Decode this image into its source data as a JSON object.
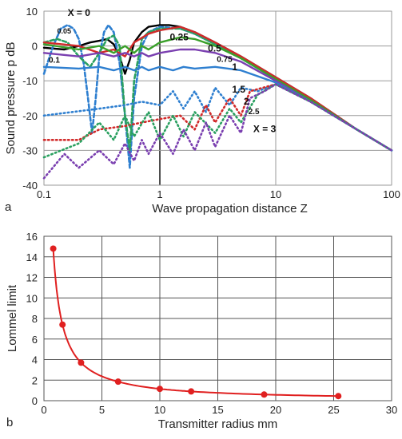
{
  "panels": {
    "a_label": "a",
    "b_label": "b"
  },
  "chart_data": [
    {
      "type": "line",
      "xlabel": "Wave propagation distance  Z",
      "ylabel": "Sound pressure  p  dB",
      "xscale": "log",
      "xlim": [
        0.1,
        100
      ],
      "ylim": [
        -40,
        10
      ],
      "x_ticks": [
        "0.1",
        "1",
        "10",
        "100"
      ],
      "y_ticks": [
        "10",
        "0",
        "-10",
        "-20",
        "-30",
        "-40"
      ],
      "grid": true,
      "series": [
        {
          "name": "X = 0",
          "color": "#000000",
          "style": "solid",
          "points": [
            [
              0.1,
              -0.5
            ],
            [
              0.15,
              -1
            ],
            [
              0.2,
              0
            ],
            [
              0.25,
              1
            ],
            [
              0.3,
              1.5
            ],
            [
              0.35,
              2
            ],
            [
              0.4,
              0.5
            ],
            [
              0.45,
              -3
            ],
            [
              0.5,
              -8
            ],
            [
              0.55,
              -4
            ],
            [
              0.6,
              1
            ],
            [
              0.7,
              4
            ],
            [
              0.8,
              5.5
            ],
            [
              1,
              6
            ],
            [
              1.2,
              6
            ],
            [
              1.5,
              5.5
            ],
            [
              2,
              4
            ],
            [
              3,
              1
            ],
            [
              5,
              -3
            ],
            [
              10,
              -9
            ],
            [
              20,
              -15
            ],
            [
              50,
              -24
            ],
            [
              100,
              -30
            ]
          ]
        },
        {
          "name": "0.05",
          "color": "#2e7fd0",
          "style": "dashed",
          "points": [
            [
              0.1,
              -8
            ],
            [
              0.12,
              0
            ],
            [
              0.14,
              5
            ],
            [
              0.16,
              6
            ],
            [
              0.18,
              5
            ],
            [
              0.2,
              2
            ],
            [
              0.22,
              -5
            ],
            [
              0.24,
              -15
            ],
            [
              0.26,
              -25
            ],
            [
              0.28,
              -15
            ],
            [
              0.3,
              -3
            ],
            [
              0.33,
              4
            ],
            [
              0.36,
              6
            ],
            [
              0.4,
              4
            ],
            [
              0.45,
              -5
            ],
            [
              0.5,
              -20
            ],
            [
              0.55,
              -35
            ],
            [
              0.6,
              -15
            ],
            [
              0.7,
              0
            ],
            [
              0.8,
              4
            ],
            [
              1,
              5.5
            ],
            [
              1.5,
              5
            ],
            [
              2,
              3.5
            ],
            [
              3,
              0.5
            ],
            [
              5,
              -3.5
            ],
            [
              10,
              -9.5
            ],
            [
              20,
              -15.5
            ],
            [
              50,
              -24
            ],
            [
              100,
              -30
            ]
          ]
        },
        {
          "name": "0.1",
          "color": "#2aa060",
          "style": "dashed",
          "points": [
            [
              0.1,
              1
            ],
            [
              0.13,
              2
            ],
            [
              0.16,
              1
            ],
            [
              0.2,
              -3
            ],
            [
              0.25,
              -6
            ],
            [
              0.3,
              -2
            ],
            [
              0.35,
              2
            ],
            [
              0.4,
              3
            ],
            [
              0.45,
              0
            ],
            [
              0.5,
              -20
            ],
            [
              0.55,
              -30
            ],
            [
              0.6,
              -10
            ],
            [
              0.7,
              2
            ],
            [
              0.8,
              4
            ],
            [
              1,
              5
            ],
            [
              1.5,
              5
            ],
            [
              2,
              3.5
            ],
            [
              3,
              0.5
            ],
            [
              5,
              -3.5
            ],
            [
              10,
              -9.5
            ],
            [
              20,
              -15.5
            ],
            [
              50,
              -24
            ],
            [
              100,
              -30
            ]
          ]
        },
        {
          "name": "0.25",
          "color": "#d12a2a",
          "style": "solid",
          "points": [
            [
              0.1,
              1
            ],
            [
              0.2,
              0
            ],
            [
              0.3,
              -2
            ],
            [
              0.4,
              -1
            ],
            [
              0.5,
              -3
            ],
            [
              0.6,
              1
            ],
            [
              0.8,
              3.5
            ],
            [
              1,
              4.5
            ],
            [
              1.5,
              5.5
            ],
            [
              2,
              4
            ],
            [
              3,
              1
            ],
            [
              5,
              -3
            ],
            [
              10,
              -9
            ],
            [
              20,
              -15
            ],
            [
              50,
              -24
            ],
            [
              100,
              -30
            ]
          ]
        },
        {
          "name": "0.5",
          "color": "#3aa02a",
          "style": "solid",
          "points": [
            [
              0.1,
              0.5
            ],
            [
              0.2,
              -1
            ],
            [
              0.3,
              0
            ],
            [
              0.4,
              -2
            ],
            [
              0.5,
              0
            ],
            [
              0.6,
              -2
            ],
            [
              0.7,
              0
            ],
            [
              0.8,
              -1
            ],
            [
              1,
              1
            ],
            [
              1.5,
              2.5
            ],
            [
              2,
              2
            ],
            [
              3,
              0
            ],
            [
              5,
              -3.5
            ],
            [
              10,
              -9.5
            ],
            [
              20,
              -15.5
            ],
            [
              50,
              -24
            ],
            [
              100,
              -30
            ]
          ]
        },
        {
          "name": "0.75",
          "color": "#7a3fb0",
          "style": "solid",
          "points": [
            [
              0.1,
              -2
            ],
            [
              0.2,
              -3
            ],
            [
              0.3,
              -2
            ],
            [
              0.4,
              -3
            ],
            [
              0.5,
              -2
            ],
            [
              0.6,
              -3
            ],
            [
              0.7,
              -2
            ],
            [
              0.8,
              -3
            ],
            [
              1,
              -2
            ],
            [
              1.5,
              -1
            ],
            [
              2,
              -1
            ],
            [
              3,
              -2
            ],
            [
              5,
              -4.5
            ],
            [
              10,
              -10
            ],
            [
              20,
              -16
            ],
            [
              50,
              -24
            ],
            [
              100,
              -30
            ]
          ]
        },
        {
          "name": "1",
          "color": "#2e7fd0",
          "style": "solid",
          "points": [
            [
              0.1,
              -6
            ],
            [
              0.2,
              -6.5
            ],
            [
              0.3,
              -6
            ],
            [
              0.4,
              -7
            ],
            [
              0.5,
              -6
            ],
            [
              0.6,
              -7
            ],
            [
              0.7,
              -6
            ],
            [
              0.8,
              -7
            ],
            [
              1,
              -6
            ],
            [
              1.3,
              -7
            ],
            [
              1.6,
              -6
            ],
            [
              2,
              -6.5
            ],
            [
              3,
              -6
            ],
            [
              5,
              -7
            ],
            [
              10,
              -10.5
            ],
            [
              20,
              -16
            ],
            [
              50,
              -24
            ],
            [
              100,
              -30
            ]
          ]
        },
        {
          "name": "1.5",
          "color": "#2e7fd0",
          "style": "dotted",
          "points": [
            [
              0.1,
              -20
            ],
            [
              0.3,
              -18
            ],
            [
              0.5,
              -17
            ],
            [
              0.7,
              -16
            ],
            [
              1,
              -17
            ],
            [
              1.3,
              -13
            ],
            [
              1.6,
              -18
            ],
            [
              2,
              -13
            ],
            [
              2.5,
              -19
            ],
            [
              3,
              -12
            ],
            [
              4,
              -17
            ],
            [
              5,
              -12
            ],
            [
              7,
              -13
            ],
            [
              10,
              -11
            ],
            [
              20,
              -16
            ],
            [
              50,
              -24
            ],
            [
              100,
              -30
            ]
          ]
        },
        {
          "name": "2",
          "color": "#d12a2a",
          "style": "dotted",
          "points": [
            [
              0.1,
              -27
            ],
            [
              0.2,
              -27
            ],
            [
              0.3,
              -24
            ],
            [
              0.5,
              -23
            ],
            [
              0.7,
              -22
            ],
            [
              1,
              -21
            ],
            [
              1.5,
              -20
            ],
            [
              2,
              -24
            ],
            [
              2.5,
              -17
            ],
            [
              3,
              -22
            ],
            [
              4,
              -15
            ],
            [
              5,
              -20
            ],
            [
              6,
              -13
            ],
            [
              10,
              -11
            ],
            [
              20,
              -16
            ],
            [
              50,
              -24
            ],
            [
              100,
              -30
            ]
          ]
        },
        {
          "name": "2.5",
          "color": "#2aa060",
          "style": "dotted",
          "points": [
            [
              0.1,
              -32
            ],
            [
              0.2,
              -28
            ],
            [
              0.3,
              -22
            ],
            [
              0.4,
              -27
            ],
            [
              0.5,
              -20
            ],
            [
              0.6,
              -26
            ],
            [
              0.8,
              -19
            ],
            [
              1,
              -27
            ],
            [
              1.3,
              -20
            ],
            [
              1.6,
              -26
            ],
            [
              2,
              -19
            ],
            [
              3,
              -25
            ],
            [
              4,
              -18
            ],
            [
              5,
              -22
            ],
            [
              7,
              -14
            ],
            [
              10,
              -11
            ],
            [
              20,
              -16
            ],
            [
              50,
              -24
            ],
            [
              100,
              -30
            ]
          ]
        },
        {
          "name": "X = 3",
          "color": "#7a3fb0",
          "style": "dotted",
          "points": [
            [
              0.1,
              -38
            ],
            [
              0.15,
              -31
            ],
            [
              0.2,
              -35
            ],
            [
              0.3,
              -30
            ],
            [
              0.4,
              -34
            ],
            [
              0.5,
              -28
            ],
            [
              0.6,
              -33
            ],
            [
              0.7,
              -27
            ],
            [
              0.8,
              -31
            ],
            [
              1,
              -25
            ],
            [
              1.3,
              -31
            ],
            [
              1.6,
              -24
            ],
            [
              2,
              -30
            ],
            [
              2.5,
              -22
            ],
            [
              3,
              -29
            ],
            [
              4,
              -20
            ],
            [
              5,
              -25
            ],
            [
              6,
              -15
            ],
            [
              8,
              -13
            ],
            [
              10,
              -11
            ],
            [
              20,
              -16
            ],
            [
              50,
              -24
            ],
            [
              100,
              -30
            ]
          ]
        }
      ]
    },
    {
      "type": "line",
      "xlabel": "Transmitter radius  mm",
      "ylabel": "Lommel limit",
      "xlim": [
        0,
        30
      ],
      "ylim": [
        0,
        16
      ],
      "x_ticks": [
        "0",
        "5",
        "10",
        "15",
        "20",
        "25",
        "30"
      ],
      "y_ticks": [
        "0",
        "2",
        "4",
        "6",
        "8",
        "10",
        "12",
        "14",
        "16"
      ],
      "grid": true,
      "series": [
        {
          "color": "#e02020",
          "marker": "circle",
          "x": [
            0.8,
            1.6,
            3.2,
            6.4,
            10,
            12.7,
            19,
            25.4
          ],
          "y": [
            14.8,
            7.4,
            3.7,
            1.85,
            1.15,
            0.9,
            0.6,
            0.45
          ]
        }
      ]
    }
  ]
}
